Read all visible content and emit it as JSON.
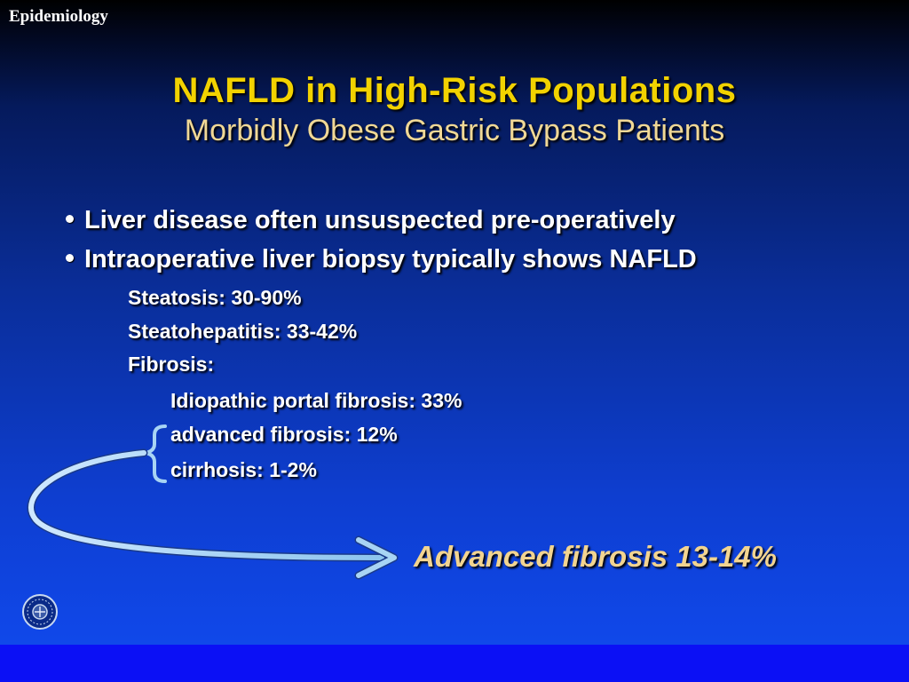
{
  "header": {
    "section_label": "Epidemiology"
  },
  "slide": {
    "title": "NAFLD in High-Risk Populations",
    "subtitle": "Morbidly Obese Gastric Bypass Patients",
    "bullets": [
      "Liver disease often unsuspected pre-operatively",
      "Intraoperative liver biopsy typically shows NAFLD"
    ],
    "findings": [
      "Steatosis: 30-90%",
      "Steatohepatitis: 33-42%",
      "Fibrosis:"
    ],
    "fibrosis_items": [
      "Idiopathic portal fibrosis: 33%",
      "advanced fibrosis: 12%",
      "cirrhosis: 1-2%"
    ],
    "conclusion": "Advanced fibrosis 13-14%"
  },
  "icons": {
    "logo": "seal-logo-icon",
    "arrow": "curved-arrow-icon",
    "brace": "left-brace-icon"
  },
  "colors": {
    "title": "#f2d200",
    "subtitle": "#f0d896",
    "conclusion": "#f2d490",
    "arrow": "#a8d4f4",
    "bottom_bar": "#0b10f5"
  }
}
